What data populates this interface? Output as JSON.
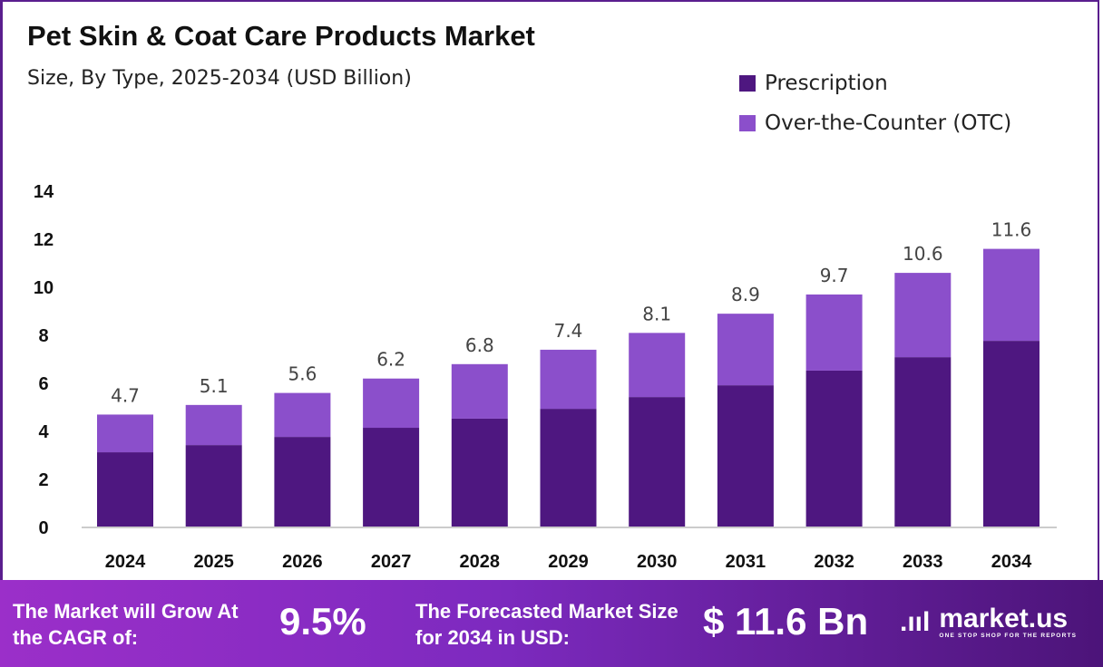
{
  "header": {
    "title": "Pet Skin & Coat Care Products Market",
    "subtitle": "Size, By Type, 2025-2034 (USD Billion)"
  },
  "chart_data": {
    "type": "bar",
    "stacked": true,
    "title": "Pet Skin & Coat Care Products Market",
    "subtitle": "Size, By Type, 2025-2034 (USD Billion)",
    "categories": [
      "2024",
      "2025",
      "2026",
      "2027",
      "2028",
      "2029",
      "2030",
      "2031",
      "2032",
      "2033",
      "2034"
    ],
    "series": [
      {
        "name": "Prescription",
        "color": "#4e1780",
        "values": [
          3.13,
          3.43,
          3.77,
          4.15,
          4.53,
          4.94,
          5.43,
          5.92,
          6.53,
          7.09,
          7.77
        ]
      },
      {
        "name": "Over-the-Counter (OTC)",
        "color": "#8b4fcb",
        "values": [
          1.57,
          1.67,
          1.83,
          2.05,
          2.27,
          2.46,
          2.67,
          2.98,
          3.17,
          3.51,
          3.83
        ]
      }
    ],
    "totals": [
      "4.7",
      "5.1",
      "5.6",
      "6.2",
      "6.8",
      "7.4",
      "8.1",
      "8.9",
      "9.7",
      "10.6",
      "11.6"
    ],
    "ylim": [
      0,
      14
    ],
    "yticks": [
      0,
      2,
      4,
      6,
      8,
      10,
      12,
      14
    ],
    "grid": false,
    "legend": "top-right"
  },
  "footer": {
    "cagr_label": "The Market will Grow At the CAGR of:",
    "cagr_value": "9.5%",
    "forecast_label": "The Forecasted Market Size for 2034 in USD:",
    "forecast_value": "$ 11.6 Bn",
    "logo_name": "market.us",
    "logo_tagline": "ONE STOP SHOP FOR THE REPORTS"
  }
}
